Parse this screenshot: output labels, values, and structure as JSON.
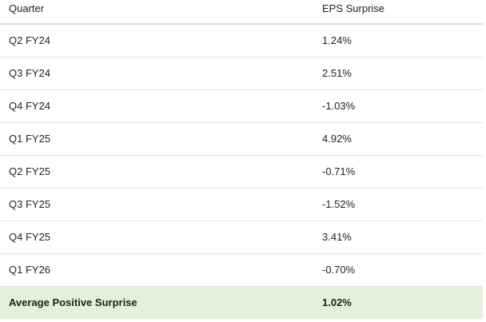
{
  "table": {
    "headers": {
      "quarter": "Quarter",
      "eps_surprise": "EPS Surprise"
    },
    "rows": [
      {
        "quarter": "Q2 FY24",
        "eps_surprise": "1.24%"
      },
      {
        "quarter": "Q3 FY24",
        "eps_surprise": "2.51%"
      },
      {
        "quarter": "Q4 FY24",
        "eps_surprise": "-1.03%"
      },
      {
        "quarter": "Q1 FY25",
        "eps_surprise": "4.92%"
      },
      {
        "quarter": "Q2 FY25",
        "eps_surprise": "-0.71%"
      },
      {
        "quarter": "Q3 FY25",
        "eps_surprise": "-1.52%"
      },
      {
        "quarter": "Q4 FY25",
        "eps_surprise": "3.41%"
      },
      {
        "quarter": "Q1 FY26",
        "eps_surprise": "-0.70%"
      }
    ],
    "summary": {
      "label": "Average Positive Surprise",
      "value": "1.02%"
    }
  },
  "colors": {
    "summary_background": "#e2f1dc",
    "row_divider": "#e4e4e4",
    "header_divider": "#d9d9d9"
  }
}
